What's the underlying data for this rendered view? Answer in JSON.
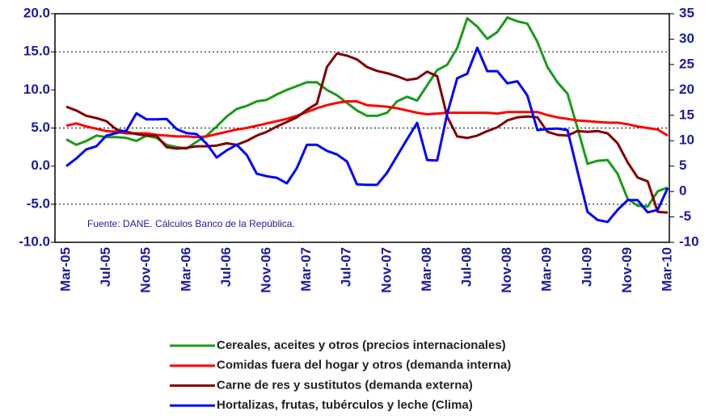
{
  "chart_data": {
    "type": "line",
    "categories": [
      "Mar-05",
      null,
      null,
      null,
      "Jul-05",
      null,
      null,
      null,
      "Nov-05",
      null,
      null,
      null,
      "Mar-06",
      null,
      null,
      null,
      "Jul-06",
      null,
      null,
      null,
      "Nov-06",
      null,
      null,
      null,
      "Mar-07",
      null,
      null,
      null,
      "Jul-07",
      null,
      null,
      null,
      "Nov-07",
      null,
      null,
      null,
      "Mar-08",
      null,
      null,
      null,
      "Jul-08",
      null,
      null,
      null,
      "Nov-08",
      null,
      null,
      null,
      "Mar-09",
      null,
      null,
      null,
      "Jul-09",
      null,
      null,
      null,
      "Nov-09",
      null,
      null,
      null,
      "Mar-10"
    ],
    "series": [
      {
        "name": "Cereales, aceites y otros (precios internacionales)",
        "color": "#1a9a1a",
        "values": [
          3.5,
          2.8,
          3.3,
          4.0,
          3.8,
          3.8,
          3.7,
          3.3,
          4.0,
          3.7,
          2.8,
          2.5,
          2.3,
          3.2,
          4.0,
          5.2,
          6.5,
          7.5,
          7.9,
          8.5,
          8.7,
          9.4,
          10.0,
          10.5,
          11.0,
          11.0,
          10.0,
          9.3,
          8.3,
          7.3,
          6.6,
          6.6,
          7.0,
          8.5,
          9.1,
          8.6,
          10.6,
          12.6,
          13.3,
          15.5,
          19.4,
          18.3,
          16.7,
          17.6,
          19.5,
          19.0,
          18.7,
          16.3,
          13.0,
          11.0,
          9.5,
          5.0,
          0.3,
          0.7,
          0.8,
          -1.0,
          -4.3,
          -5.2,
          -5.3,
          -3.3,
          -2.8
        ]
      },
      {
        "name": "Comidas fuera del hogar y otros (demanda interna)",
        "color": "#ff0000",
        "values": [
          5.3,
          5.6,
          5.2,
          4.9,
          4.6,
          4.5,
          4.3,
          4.3,
          4.3,
          4.1,
          4.0,
          3.9,
          3.9,
          3.8,
          3.9,
          4.2,
          4.5,
          4.8,
          5.0,
          5.3,
          5.6,
          5.9,
          6.2,
          6.6,
          7.1,
          7.6,
          8.0,
          8.3,
          8.5,
          8.5,
          8.0,
          7.9,
          7.8,
          7.6,
          7.3,
          7.0,
          6.8,
          6.9,
          7.0,
          7.0,
          7.0,
          7.0,
          7.0,
          6.9,
          7.1,
          7.1,
          7.1,
          7.1,
          6.7,
          6.4,
          6.2,
          6.0,
          5.9,
          5.8,
          5.7,
          5.7,
          5.5,
          5.2,
          5.0,
          4.8,
          4.0
        ]
      },
      {
        "name": "Carne de res y sustitutos (demanda externa)",
        "color": "#800000",
        "values": [
          7.8,
          7.3,
          6.6,
          6.3,
          5.9,
          4.8,
          4.5,
          4.2,
          4.0,
          4.0,
          2.5,
          2.3,
          2.4,
          2.6,
          2.6,
          2.7,
          3.0,
          2.8,
          3.3,
          4.0,
          4.5,
          5.2,
          5.8,
          6.4,
          7.4,
          8.2,
          13.0,
          14.8,
          14.5,
          14.0,
          13.0,
          12.5,
          12.2,
          11.8,
          11.3,
          11.5,
          12.4,
          11.8,
          6.5,
          3.9,
          3.7,
          4.0,
          4.6,
          5.1,
          6.0,
          6.4,
          6.5,
          6.4,
          4.5,
          4.1,
          4.0,
          4.6,
          4.5,
          4.6,
          4.3,
          3.0,
          0.5,
          -1.5,
          -2.0,
          -6.0,
          -6.1
        ]
      },
      {
        "name": "Hortalizas, frutas, tubérculos y leche (Clima)",
        "color": "#0000ff",
        "axis": "y2",
        "values": [
          5.0,
          6.5,
          8.3,
          8.9,
          11.0,
          11.5,
          12.0,
          15.4,
          14.2,
          14.2,
          14.3,
          12.3,
          11.5,
          11.3,
          9.4,
          6.7,
          8.1,
          9.2,
          7.2,
          3.5,
          3.0,
          2.7,
          1.6,
          4.6,
          9.2,
          9.2,
          8.0,
          7.3,
          5.9,
          1.4,
          1.3,
          1.3,
          3.7,
          7.0,
          10.3,
          13.5,
          6.2,
          6.1,
          15.3,
          22.3,
          23.2,
          28.3,
          23.7,
          23.7,
          21.3,
          21.7,
          18.9,
          12.1,
          12.3,
          12.4,
          12.1,
          4.0,
          -4.0,
          -5.6,
          -6.0,
          -3.6,
          -1.7,
          -1.7,
          -4.1,
          -3.6,
          0.7
        ]
      }
    ],
    "ylim": [
      -10,
      20
    ],
    "yticks": [
      {
        "value": 20,
        "label": "20.0"
      },
      {
        "value": 15,
        "label": "15.0"
      },
      {
        "value": 10,
        "label": "10.0"
      },
      {
        "value": 5,
        "label": "5.0"
      },
      {
        "value": 0,
        "label": "0.0"
      },
      {
        "value": -5,
        "label": "-5.0"
      },
      {
        "value": -10,
        "label": "-10.0"
      }
    ],
    "y2lim": [
      -10,
      35
    ],
    "y2ticks": [
      35,
      30,
      25,
      20,
      15,
      10,
      5,
      0,
      -5,
      -10
    ],
    "annotation": "Fuente: DANE. Cálculos Banco de la República.",
    "grid": true,
    "legend": "bottom"
  }
}
